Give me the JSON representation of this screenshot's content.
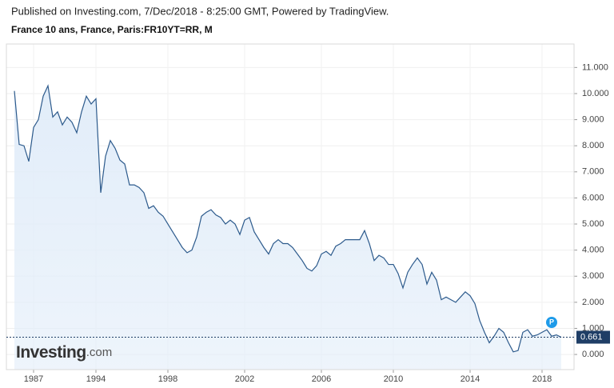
{
  "header": {
    "published": "Published on Investing.com, 7/Dec/2018 - 8:25:00 GMT, Powered by TradingView.",
    "instrument": "France 10 ans, France, Paris:FR10YT=RR, M"
  },
  "logo": {
    "name": "Investing",
    "suffix": ".com"
  },
  "marker_icon": "P",
  "chart_data": {
    "type": "area",
    "color": "#2c5a8c",
    "fill": "#e2edf9",
    "grid": true,
    "categories": [
      null,
      null,
      null,
      null,
      "1987",
      null,
      null,
      null,
      null,
      null,
      null,
      null,
      null,
      null,
      null,
      null,
      null,
      "1994",
      null,
      null,
      null,
      null,
      null,
      null,
      null,
      null,
      null,
      null,
      null,
      null,
      null,
      null,
      "1998",
      null,
      null,
      null,
      null,
      null,
      null,
      null,
      null,
      null,
      null,
      null,
      null,
      null,
      null,
      null,
      "2002",
      null,
      null,
      null,
      null,
      null,
      null,
      null,
      null,
      null,
      null,
      null,
      null,
      null,
      null,
      null,
      "2006",
      null,
      null,
      null,
      null,
      null,
      null,
      null,
      null,
      null,
      null,
      null,
      null,
      null,
      null,
      "2010",
      null,
      null,
      null,
      null,
      null,
      null,
      null,
      null,
      null,
      null,
      null,
      null,
      null,
      null,
      null,
      "2014",
      null,
      null,
      null,
      null,
      null,
      null,
      null,
      null,
      null,
      null,
      null,
      null,
      null,
      null,
      "2018",
      null,
      null,
      null,
      null
    ],
    "values": [
      10.1,
      8.05,
      8.0,
      7.4,
      8.7,
      9.0,
      9.9,
      10.3,
      9.1,
      9.3,
      8.8,
      9.1,
      8.9,
      8.5,
      9.3,
      9.9,
      9.6,
      9.8,
      6.2,
      7.6,
      8.2,
      7.9,
      7.45,
      7.3,
      6.5,
      6.5,
      6.4,
      6.2,
      5.6,
      5.7,
      5.45,
      5.3,
      5.0,
      4.7,
      4.4,
      4.1,
      3.9,
      4.0,
      4.5,
      5.3,
      5.45,
      5.55,
      5.35,
      5.25,
      5.0,
      5.15,
      5.0,
      4.6,
      5.15,
      5.25,
      4.7,
      4.4,
      4.1,
      3.85,
      4.25,
      4.4,
      4.25,
      4.25,
      4.1,
      3.85,
      3.6,
      3.3,
      3.2,
      3.4,
      3.85,
      3.95,
      3.8,
      4.15,
      4.25,
      4.4,
      4.4,
      4.4,
      4.4,
      4.75,
      4.25,
      3.6,
      3.8,
      3.7,
      3.45,
      3.45,
      3.1,
      2.55,
      3.15,
      3.45,
      3.7,
      3.45,
      2.7,
      3.15,
      2.85,
      2.1,
      2.2,
      2.1,
      2.0,
      2.2,
      2.4,
      2.25,
      1.95,
      1.3,
      0.85,
      0.45,
      0.7,
      1.0,
      0.85,
      0.45,
      0.1,
      0.15,
      0.85,
      0.95,
      0.7,
      0.75,
      0.85,
      0.95,
      0.7,
      0.75,
      0.661
    ],
    "ylim": [
      -0.58,
      11.9
    ],
    "yticks": [
      {
        "value": 0,
        "label": "0.000"
      },
      {
        "value": 1,
        "label": "1.000"
      },
      {
        "value": 2,
        "label": "2.000"
      },
      {
        "value": 3,
        "label": "3.000"
      },
      {
        "value": 4,
        "label": "4.000"
      },
      {
        "value": 5,
        "label": "5.000"
      },
      {
        "value": 6,
        "label": "6.000"
      },
      {
        "value": 7,
        "label": "7.000"
      },
      {
        "value": 8,
        "label": "8.000"
      },
      {
        "value": 9,
        "label": "9.000"
      },
      {
        "value": 10,
        "label": "10.000"
      },
      {
        "value": 11,
        "label": "11.000"
      }
    ]
  }
}
